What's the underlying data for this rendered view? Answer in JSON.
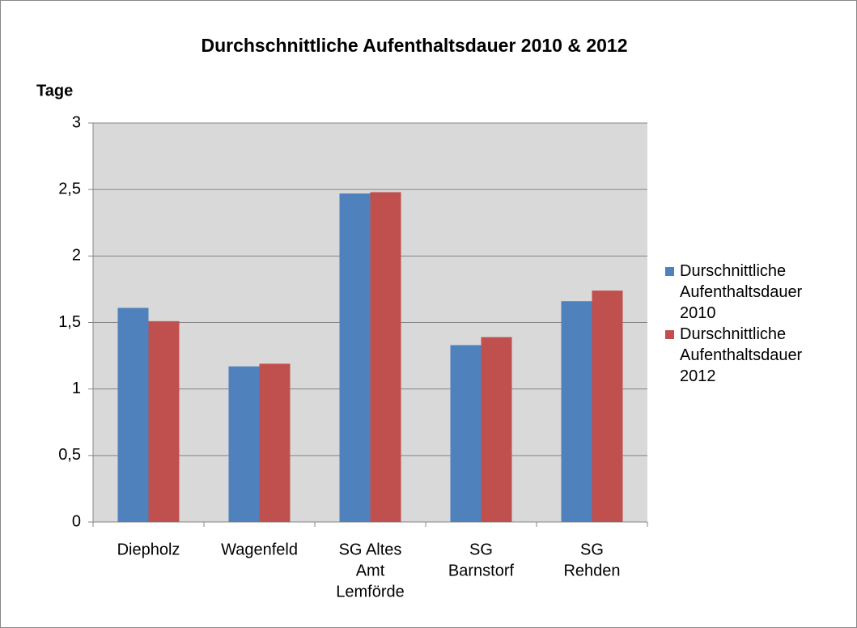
{
  "chart_data": {
    "type": "bar",
    "title": "Durchschnittliche Aufenthaltsdauer 2010 & 2012",
    "ylabel": "Tage",
    "categories": [
      [
        "Diepholz"
      ],
      [
        "Wagenfeld"
      ],
      [
        "SG Altes",
        "Amt",
        "Lemförde"
      ],
      [
        "SG",
        "Barnstorf"
      ],
      [
        "SG",
        "Rehden"
      ]
    ],
    "series": [
      {
        "name": "Durschnittliche Aufenthaltsdauer 2010",
        "color": "#4f81bd",
        "values": [
          1.61,
          1.17,
          2.47,
          1.33,
          1.66
        ]
      },
      {
        "name": "Durschnittliche Aufenthaltsdauer 2012",
        "color": "#c0504d",
        "values": [
          1.51,
          1.19,
          2.48,
          1.39,
          1.74
        ]
      }
    ],
    "ylim": [
      0,
      3
    ],
    "yticks": [
      0,
      {
        "value": 0.5,
        "label": "0,5"
      },
      1,
      {
        "value": 1.5,
        "label": "1,5"
      },
      2,
      {
        "value": 2.5,
        "label": "2,5"
      },
      3
    ],
    "grid": true,
    "legend": "right"
  }
}
